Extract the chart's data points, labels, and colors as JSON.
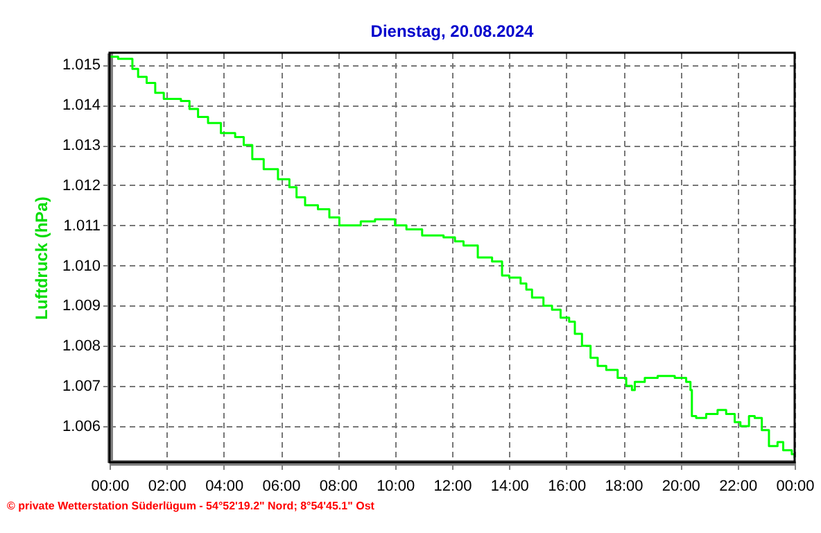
{
  "chart_data": {
    "type": "step",
    "title": "Dienstag, 20.08.2024",
    "ylabel": "Luftdruck  (hPa)",
    "annotations": [
      "© private Wetterstation Süderlügum - 54°52'19.2\" Nord; 8°54'45.1\" Ost"
    ],
    "x": [
      0,
      0.3,
      0.8,
      1.0,
      1.3,
      1.6,
      1.9,
      2.5,
      2.8,
      3.1,
      3.45,
      3.9,
      4.4,
      4.7,
      5.0,
      5.4,
      5.9,
      6.3,
      6.55,
      6.85,
      7.3,
      7.7,
      8.05,
      8.8,
      9.3,
      10.0,
      10.35,
      10.4,
      10.95,
      11.7,
      12.1,
      12.4,
      12.9,
      13.4,
      13.75,
      14.0,
      14.4,
      14.6,
      14.8,
      15.2,
      15.5,
      15.8,
      16.1,
      16.3,
      16.55,
      16.85,
      17.1,
      17.4,
      17.8,
      18.1,
      18.3,
      18.4,
      18.75,
      19.2,
      19.8,
      20.2,
      20.35,
      20.4,
      20.55,
      20.9,
      21.3,
      21.6,
      21.9,
      22.1,
      22.4,
      22.6,
      22.85,
      23.1,
      23.4,
      23.6,
      23.9,
      24.0
    ],
    "series": [
      {
        "color": "#00ff00",
        "values": [
          1.0152,
          1.01515,
          1.0149,
          1.0147,
          1.01455,
          1.0143,
          1.01415,
          1.0141,
          1.0139,
          1.0137,
          1.01355,
          1.0133,
          1.0132,
          1.013,
          1.01265,
          1.0124,
          1.01215,
          1.01195,
          1.0117,
          1.0115,
          1.0114,
          1.0112,
          1.011,
          1.0111,
          1.01115,
          1.011,
          1.011,
          1.0109,
          1.01075,
          1.0107,
          1.0106,
          1.0105,
          1.0102,
          1.0101,
          1.00975,
          1.0097,
          1.00955,
          1.0094,
          1.0092,
          1.009,
          1.0089,
          1.0087,
          1.0086,
          1.0083,
          1.008,
          1.0077,
          1.0075,
          1.0074,
          1.0072,
          1.007,
          1.0069,
          1.0071,
          1.0072,
          1.00725,
          1.0072,
          1.0071,
          1.0069,
          1.00625,
          1.0062,
          1.0063,
          1.0064,
          1.0063,
          1.0061,
          1.006,
          1.00625,
          1.0062,
          1.0059,
          1.0055,
          1.0056,
          1.0054,
          1.0053,
          1.0052
        ]
      }
    ],
    "xlim": [
      0,
      24
    ],
    "xticks": [
      {
        "value": 0,
        "label": "00:00"
      },
      {
        "value": 2,
        "label": "02:00"
      },
      {
        "value": 4,
        "label": "04:00"
      },
      {
        "value": 6,
        "label": "06:00"
      },
      {
        "value": 8,
        "label": "08:00"
      },
      {
        "value": 10,
        "label": "10:00"
      },
      {
        "value": 12,
        "label": "12:00"
      },
      {
        "value": 14,
        "label": "14:00"
      },
      {
        "value": 16,
        "label": "16:00"
      },
      {
        "value": 18,
        "label": "18:00"
      },
      {
        "value": 20,
        "label": "20:00"
      },
      {
        "value": 22,
        "label": "22:00"
      },
      {
        "value": 24,
        "label": "00:00"
      }
    ],
    "ylim": [
      1.0051,
      1.0153
    ],
    "yticks": [
      {
        "value": 1.006,
        "label": "1.006"
      },
      {
        "value": 1.007,
        "label": "1.007"
      },
      {
        "value": 1.008,
        "label": "1.008"
      },
      {
        "value": 1.009,
        "label": "1.009"
      },
      {
        "value": 1.01,
        "label": "1.010"
      },
      {
        "value": 1.011,
        "label": "1.011"
      },
      {
        "value": 1.012,
        "label": "1.012"
      },
      {
        "value": 1.013,
        "label": "1.013"
      },
      {
        "value": 1.014,
        "label": "1.014"
      },
      {
        "value": 1.015,
        "label": "1.015"
      }
    ],
    "grid": true,
    "line_style": "solid",
    "marker": "none"
  }
}
